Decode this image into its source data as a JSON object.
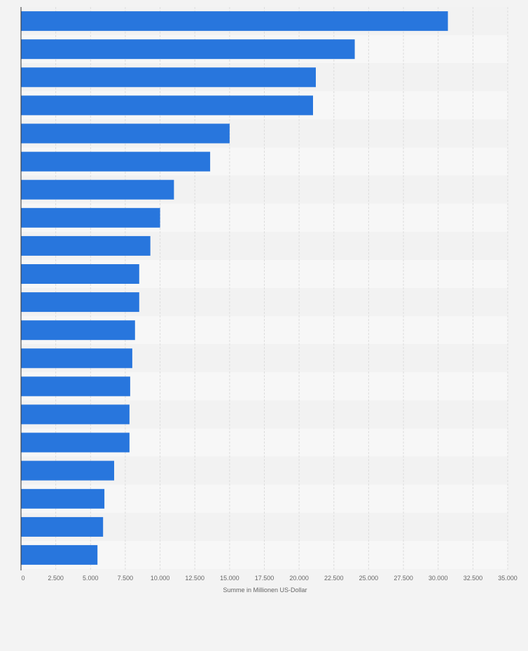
{
  "chart_data": {
    "type": "bar",
    "orientation": "horizontal",
    "title": "",
    "xlabel": "Summe in Millionen US-Dollar",
    "ylabel": "",
    "xlim": [
      0,
      35000
    ],
    "x_ticks": [
      0,
      2500,
      5000,
      7500,
      10000,
      12500,
      15000,
      17500,
      20000,
      22500,
      25000,
      27500,
      30000,
      32500,
      35000
    ],
    "x_tick_labels": [
      "0",
      "2.500",
      "5.000",
      "7.500",
      "10.000",
      "12.500",
      "15.000",
      "17.500",
      "20.000",
      "22.500",
      "25.000",
      "27.500",
      "30.000",
      "32.500",
      "35.000"
    ],
    "categories": [
      "",
      "",
      "",
      "",
      "",
      "",
      "",
      "",
      "",
      "",
      "",
      "",
      "",
      "",
      "",
      "",
      "",
      "",
      "",
      ""
    ],
    "values": [
      30700,
      24000,
      21200,
      21000,
      15000,
      13600,
      11000,
      10000,
      9300,
      8500,
      8500,
      8200,
      8000,
      7850,
      7800,
      7800,
      6700,
      6000,
      5900,
      5500
    ],
    "grid": true,
    "legend": "none",
    "colors": {
      "bar": "#2876dd",
      "band_light": "#f7f7f7",
      "band_dark": "#f2f2f2",
      "grid": "#dddddd",
      "axis": "#333333",
      "text": "#666666"
    }
  }
}
